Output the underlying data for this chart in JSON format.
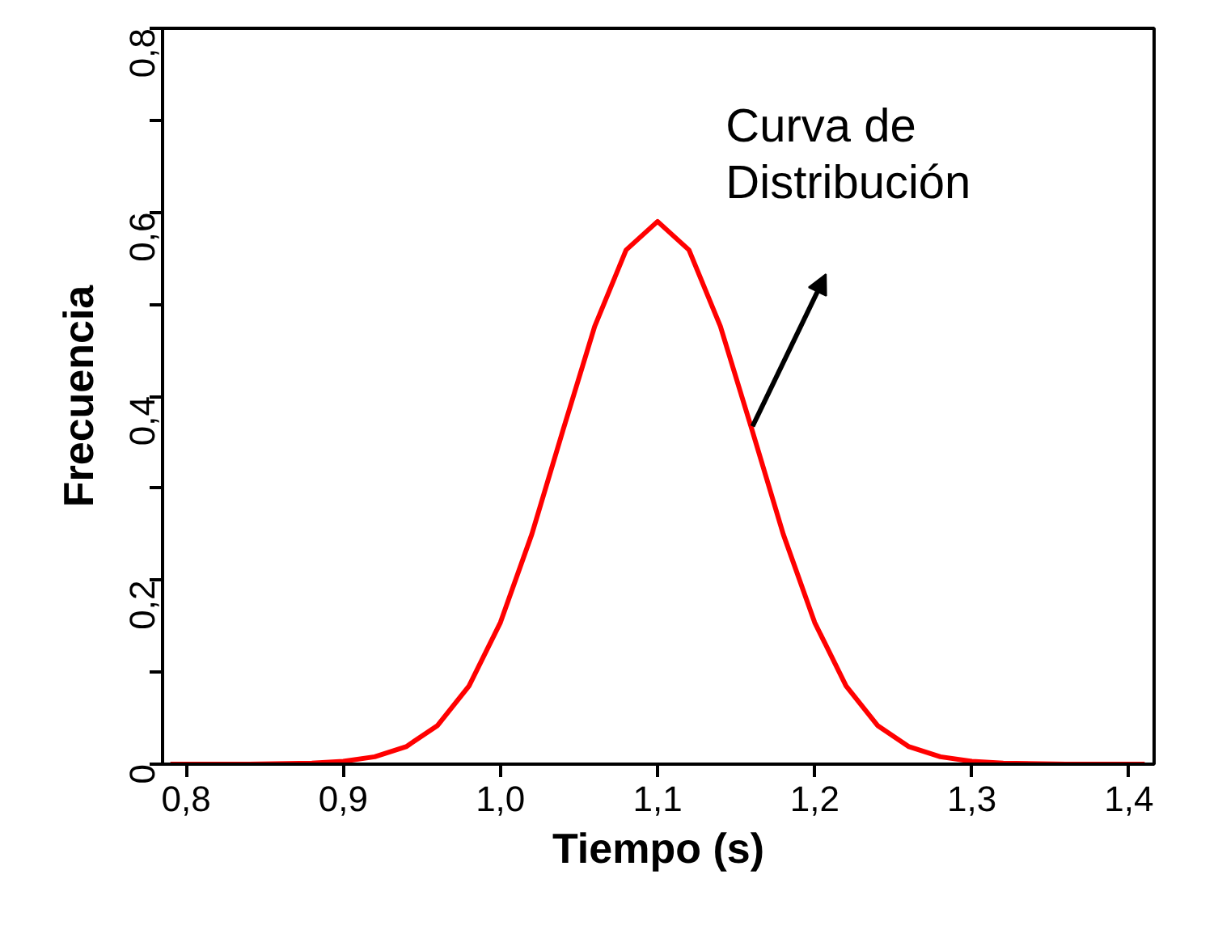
{
  "chart_data": {
    "type": "line",
    "xlabel": "Tiempo (s)",
    "ylabel": "Frecuencia",
    "x": [
      0.79,
      0.84,
      0.88,
      0.9,
      0.92,
      0.94,
      0.96,
      0.98,
      1.0,
      1.02,
      1.04,
      1.06,
      1.08,
      1.1,
      1.12,
      1.14,
      1.16,
      1.18,
      1.2,
      1.22,
      1.24,
      1.26,
      1.28,
      1.3,
      1.32,
      1.36,
      1.41
    ],
    "series": [
      {
        "color": "#ff0000",
        "values": [
          0,
          0,
          0.001,
          0.003,
          0.008,
          0.019,
          0.042,
          0.085,
          0.154,
          0.25,
          0.364,
          0.476,
          0.559,
          0.59,
          0.559,
          0.476,
          0.364,
          0.25,
          0.154,
          0.085,
          0.042,
          0.019,
          0.008,
          0.003,
          0.001,
          0,
          0
        ]
      }
    ],
    "xlim": [
      0.785,
      1.416
    ],
    "ylim": [
      0,
      0.8
    ],
    "xticks": [
      {
        "value": 0.8,
        "label": "0,8"
      },
      {
        "value": 0.9,
        "label": "0,9"
      },
      {
        "value": 1.0,
        "label": "1,0"
      },
      {
        "value": 1.1,
        "label": "1,1"
      },
      {
        "value": 1.2,
        "label": "1,2"
      },
      {
        "value": 1.3,
        "label": "1,3"
      },
      {
        "value": 1.4,
        "label": "1,4"
      }
    ],
    "yticks": [
      0,
      {
        "value": 0.1,
        "label": null
      },
      {
        "value": 0.2,
        "label": "0,2"
      },
      {
        "value": 0.3,
        "label": null
      },
      {
        "value": 0.4,
        "label": "0,4"
      },
      {
        "value": 0.5,
        "label": null
      },
      {
        "value": 0.6,
        "label": "0,6"
      },
      {
        "value": 0.7,
        "label": null
      },
      {
        "value": 0.8,
        "label": "0,8"
      }
    ],
    "annotations": [
      "Curva de\nDistribución"
    ],
    "grid": false,
    "line_style": "solid",
    "marker": "none"
  }
}
